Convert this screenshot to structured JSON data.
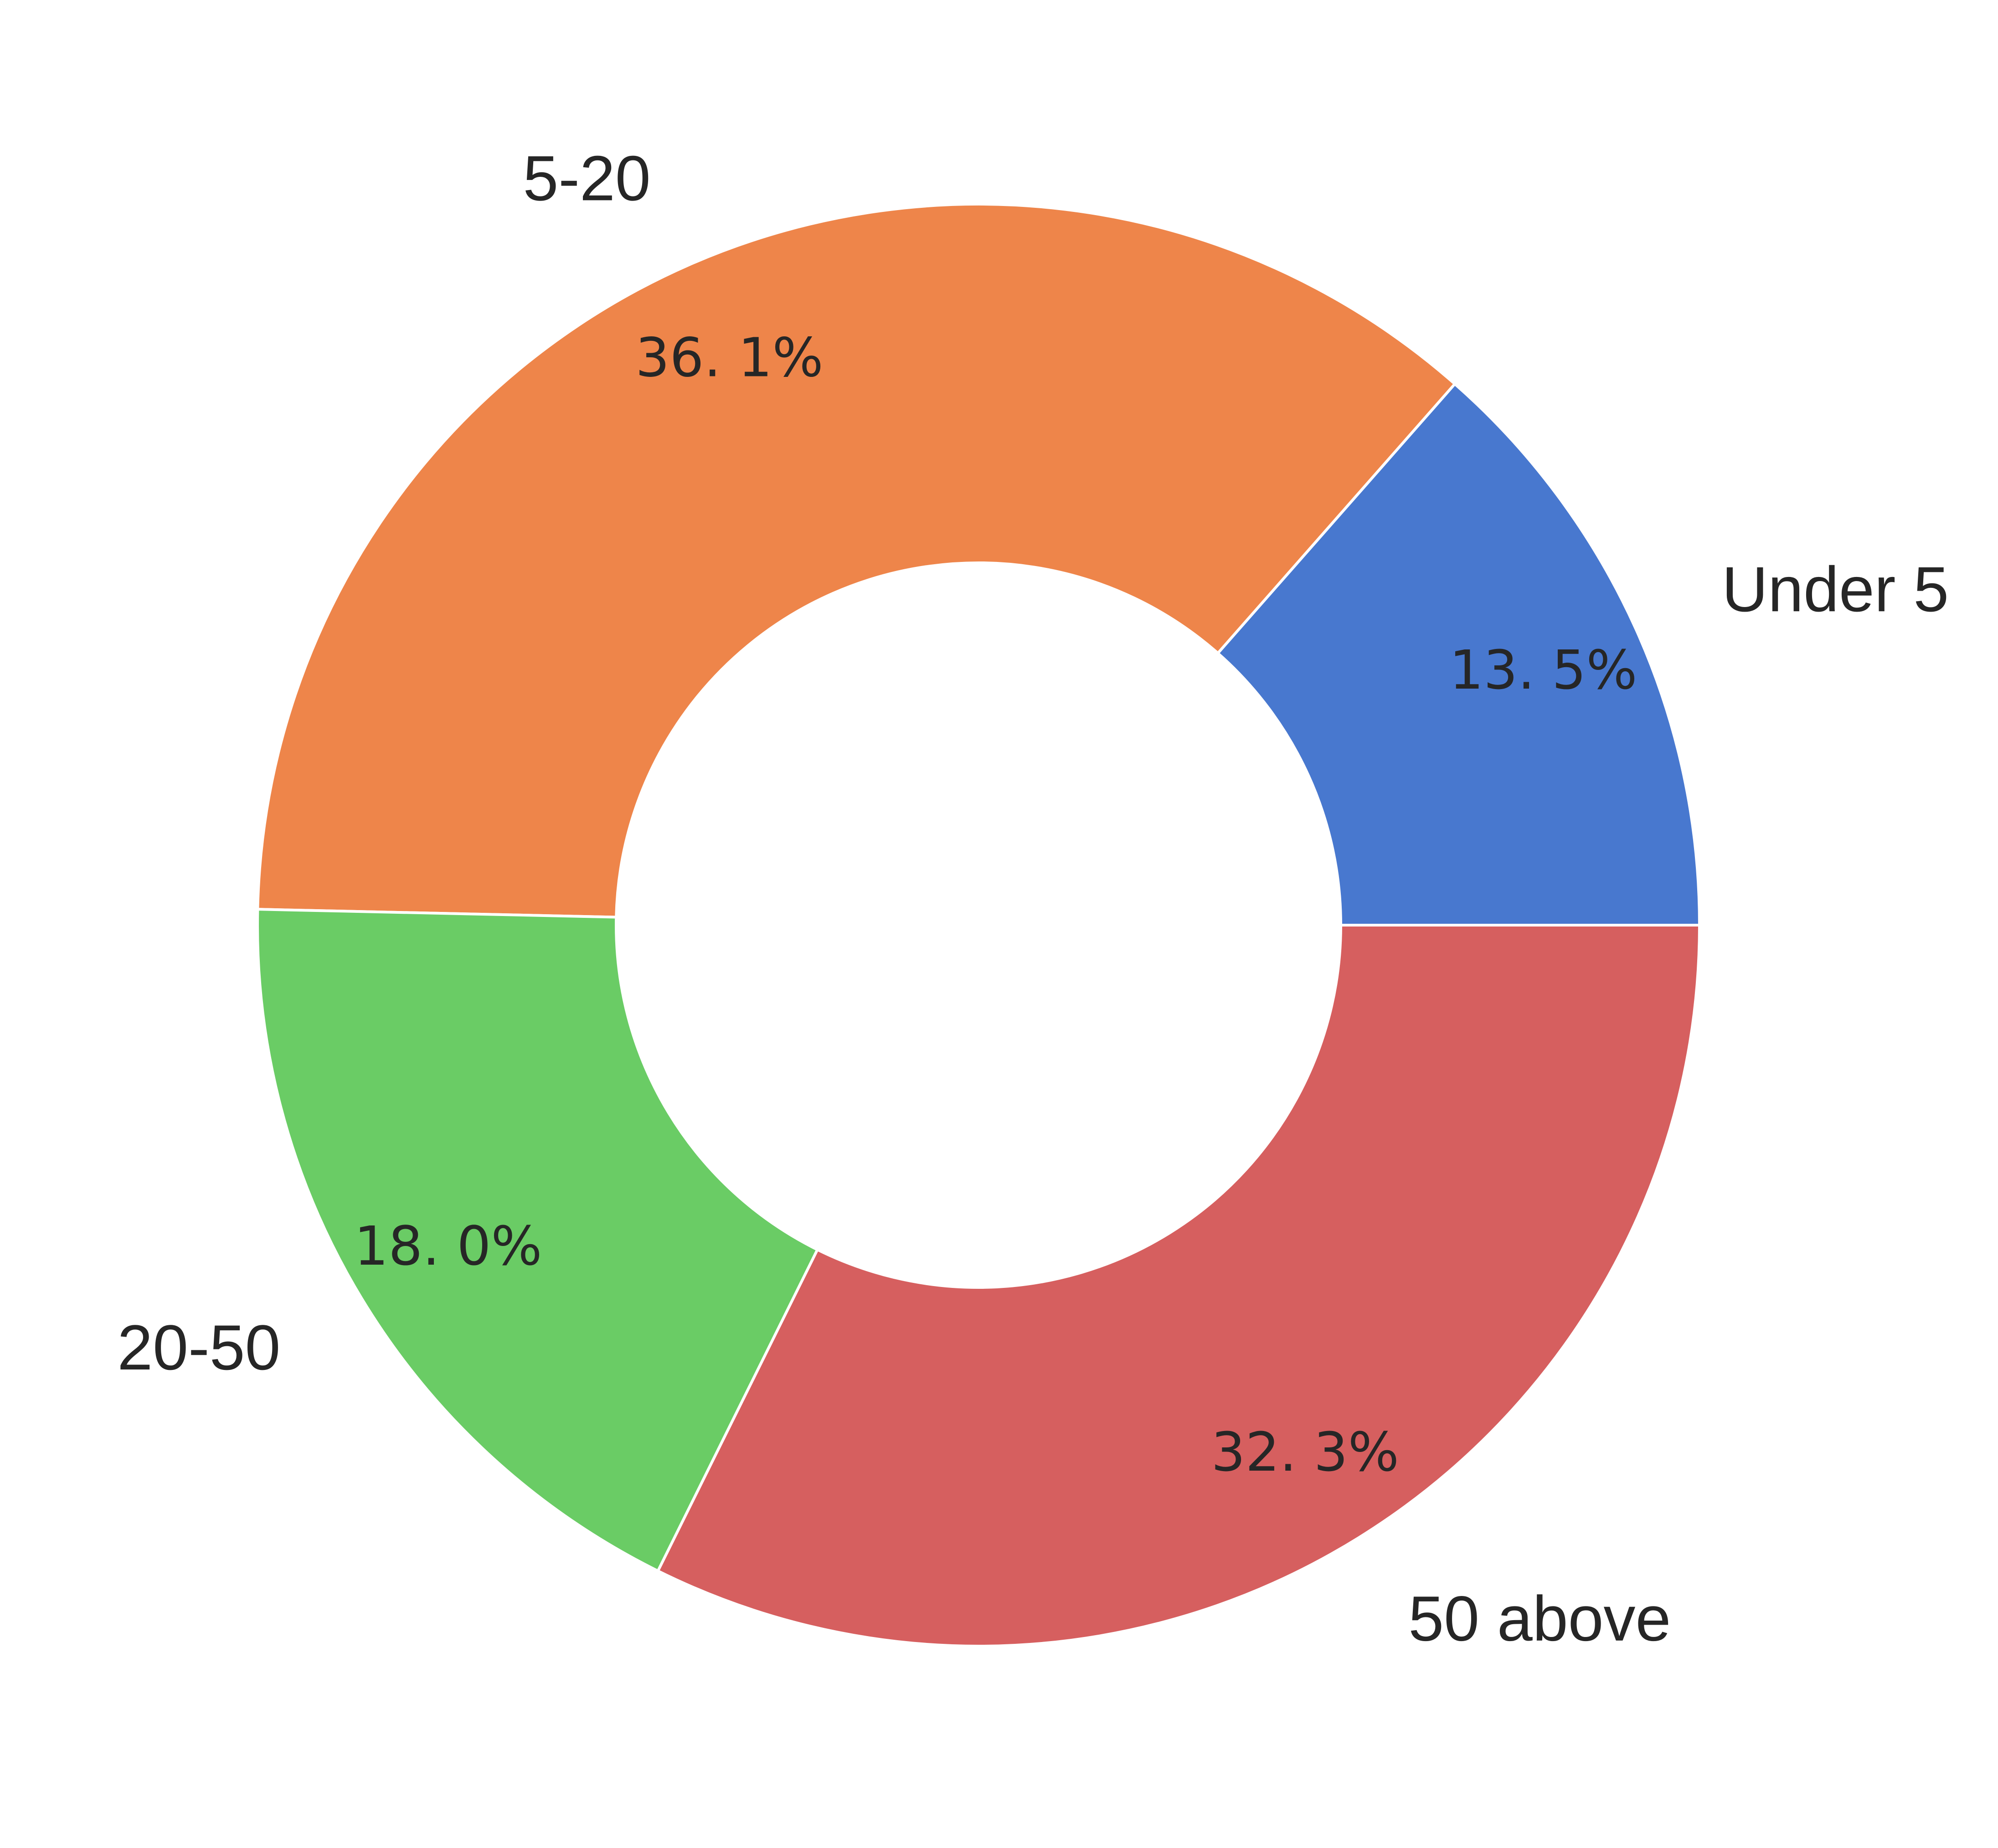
{
  "chart_data": {
    "type": "pie",
    "variant": "donut",
    "categories": [
      "Under 5",
      "5-20",
      "20-50",
      "50 above"
    ],
    "values": [
      13.5,
      36.1,
      18.0,
      32.3
    ],
    "value_labels": [
      "13. 5%",
      "36. 1%",
      "18. 0%",
      "32. 3%"
    ],
    "colors": [
      "#4878CF",
      "#EE854A",
      "#6ACC65",
      "#D65F5F"
    ],
    "title": "",
    "legend": "none",
    "start_angle_deg": 0,
    "direction": "counterclockwise"
  }
}
